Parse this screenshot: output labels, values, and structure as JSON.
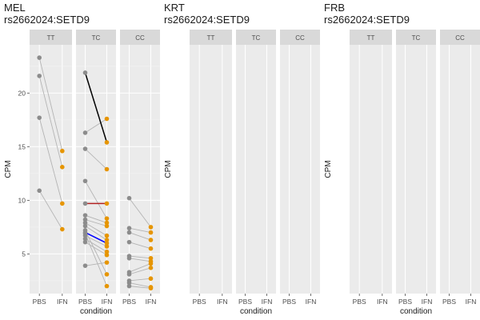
{
  "colors": {
    "panel_bg": "#ebebeb",
    "strip_bg": "#d9d9d9",
    "grid_major": "#ffffff",
    "pbs_point": "#8c8c8c",
    "ifn_point": "#e69500",
    "pair_line": "#b4b4b4",
    "highlight_black": "#000000",
    "highlight_red": "#b22222",
    "highlight_blue": "#0000ff",
    "text": "#1a1a1a",
    "tick_text": "#4d4d4d"
  },
  "chart_data": [
    {
      "type": "scatter",
      "title": "MEL",
      "subtitle": "rs2662024:SETD9",
      "xlabel": "condition",
      "ylabel": "CPM",
      "ylim": [
        1.3,
        24.5
      ],
      "yticks": [
        5,
        10,
        15,
        20
      ],
      "facets": [
        "TT",
        "TC",
        "CC"
      ],
      "categories": [
        "PBS",
        "IFN"
      ],
      "pairs": {
        "TT": [
          [
            23.3,
            14.6
          ],
          [
            21.6,
            13.1
          ],
          [
            17.7,
            9.7
          ],
          [
            10.9,
            7.3
          ]
        ],
        "TC": [
          [
            21.9,
            15.4
          ],
          [
            16.3,
            17.6
          ],
          [
            14.8,
            12.9
          ],
          [
            11.8,
            8.3
          ],
          [
            9.7,
            9.7
          ],
          [
            8.6,
            7.9
          ],
          [
            8.2,
            7.6
          ],
          [
            7.9,
            6.7
          ],
          [
            7.6,
            6.3
          ],
          [
            7.0,
            6.0
          ],
          [
            6.7,
            5.7
          ],
          [
            6.4,
            5.2
          ],
          [
            6.1,
            4.9
          ],
          [
            3.9,
            4.2
          ],
          [
            7.2,
            3.1
          ],
          [
            6.9,
            2.0
          ]
        ],
        "CC": [
          [
            10.2,
            7.5
          ],
          [
            7.4,
            7.0
          ],
          [
            7.0,
            6.3
          ],
          [
            6.1,
            5.5
          ],
          [
            4.8,
            4.6
          ],
          [
            4.6,
            4.3
          ],
          [
            3.3,
            4.1
          ],
          [
            3.1,
            3.7
          ],
          [
            2.5,
            2.7
          ],
          [
            2.3,
            1.9
          ],
          [
            2.0,
            1.8
          ]
        ]
      },
      "highlights": [
        {
          "facet": "TC",
          "pbs": 21.9,
          "ifn": 15.4,
          "color": "highlight_black"
        },
        {
          "facet": "TC",
          "pbs": 9.7,
          "ifn": 9.7,
          "color": "highlight_red"
        },
        {
          "facet": "TC",
          "pbs": 7.0,
          "ifn": 6.0,
          "color": "highlight_blue"
        }
      ]
    },
    {
      "type": "scatter",
      "title": "KRT",
      "subtitle": "rs2662024:SETD9",
      "xlabel": "condition",
      "ylabel": "CPM",
      "facets": [
        "TT",
        "TC",
        "CC"
      ],
      "categories": [
        "PBS",
        "IFN"
      ],
      "pairs": {
        "TT": [],
        "TC": [],
        "CC": []
      },
      "highlights": []
    },
    {
      "type": "scatter",
      "title": "FRB",
      "subtitle": "rs2662024:SETD9",
      "xlabel": "condition",
      "ylabel": "CPM",
      "facets": [
        "TT",
        "TC",
        "CC"
      ],
      "categories": [
        "PBS",
        "IFN"
      ],
      "pairs": {
        "TT": [],
        "TC": [],
        "CC": []
      },
      "highlights": []
    }
  ]
}
